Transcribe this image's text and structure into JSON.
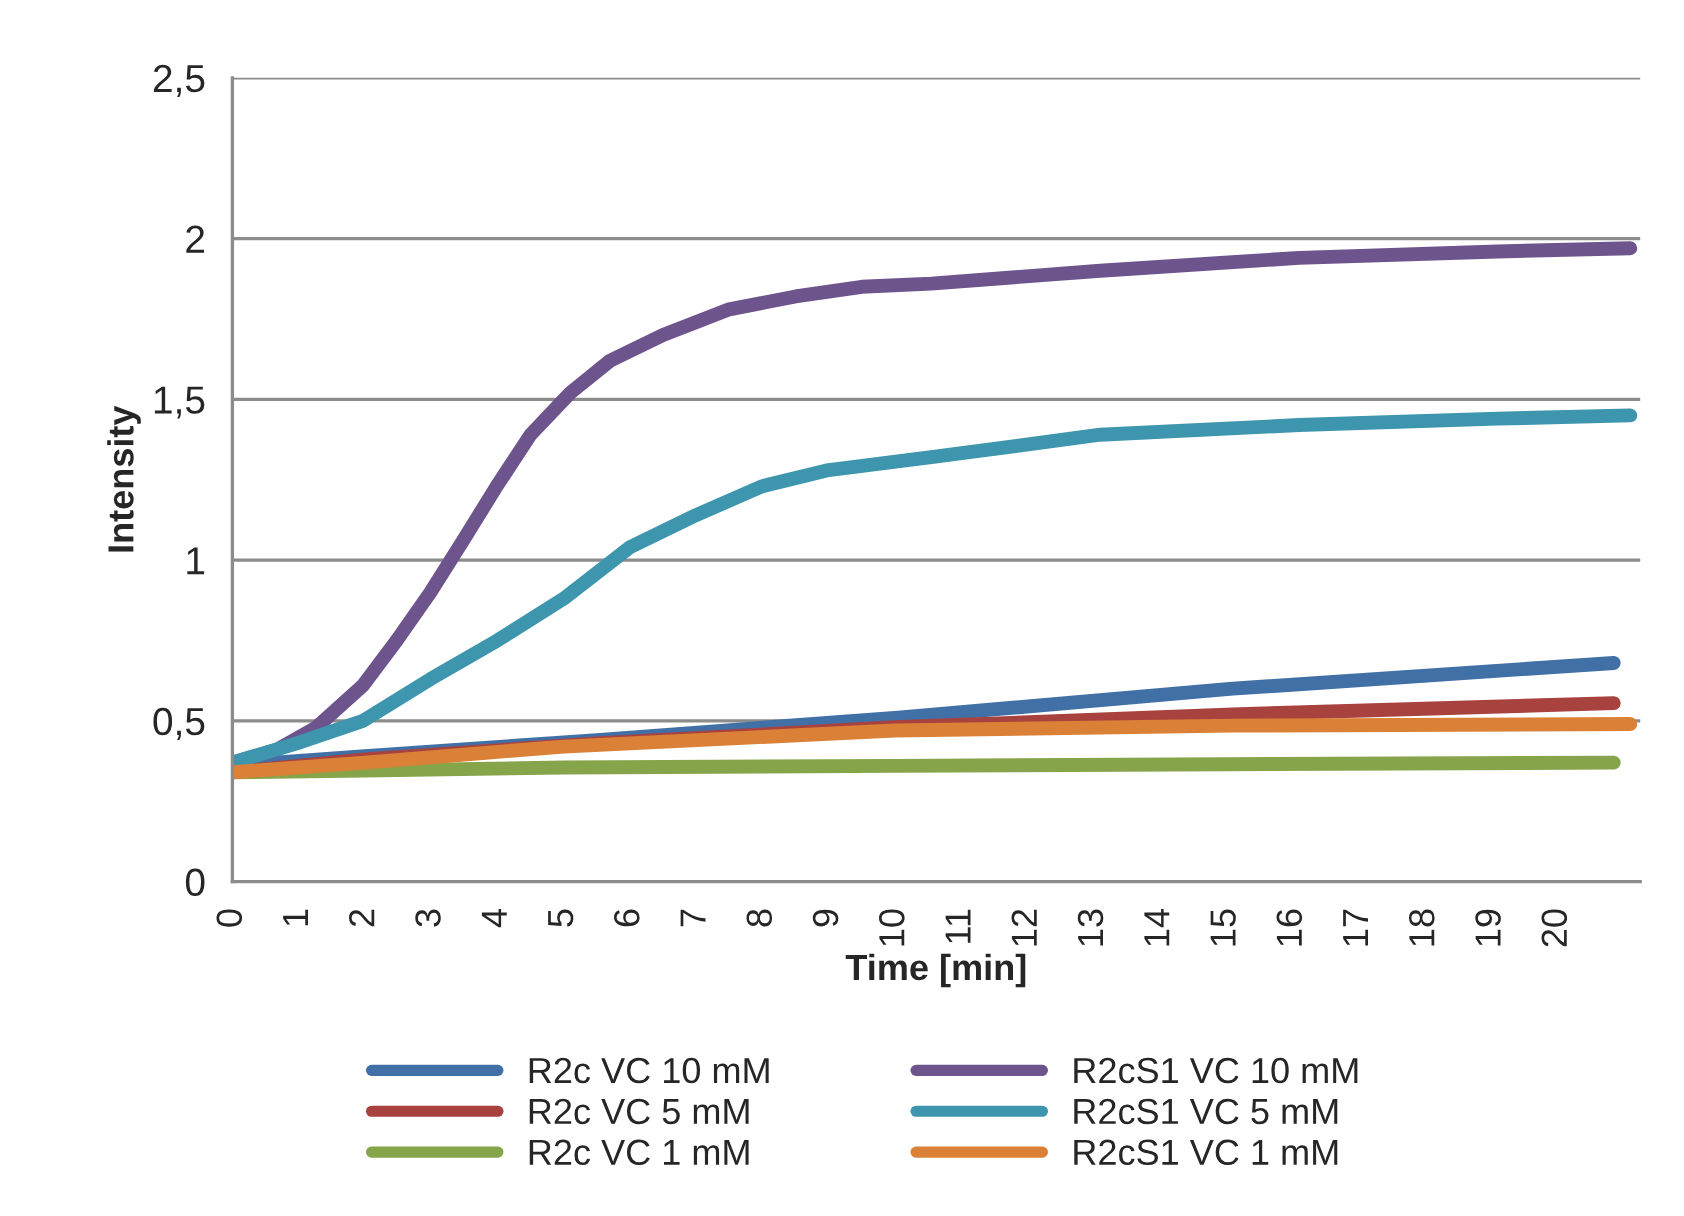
{
  "chart_data": {
    "type": "line",
    "xlabel": "Time [min]",
    "ylabel": "Intensity",
    "xlim": [
      0,
      21.25
    ],
    "xticks": [
      0,
      1,
      2,
      3,
      4,
      5,
      6,
      7,
      8,
      9,
      10,
      11,
      12,
      13,
      14,
      15,
      16,
      17,
      18,
      19,
      20
    ],
    "ylim": [
      0,
      2.5
    ],
    "yticks": [
      0,
      {
        "value": 0.5,
        "label": "0,5"
      },
      1,
      {
        "value": 1.5,
        "label": "1,5"
      },
      2,
      {
        "value": 2.5,
        "label": "2,5"
      }
    ],
    "grid": "y",
    "legend": "bottom",
    "marker": "none",
    "line_style": "solid",
    "series": [
      {
        "name": "R2c VC 10 mM",
        "color": "#4170a6",
        "x": [
          0,
          2,
          5.5,
          10.05,
          15.1,
          20.85
        ],
        "values": [
          0.36,
          0.39,
          0.44,
          0.51,
          0.6,
          0.68
        ]
      },
      {
        "name": "R2c VC 5 mM",
        "color": "#a8423f",
        "x": [
          0,
          2,
          5.5,
          10,
          15.1,
          20.85
        ],
        "values": [
          0.34,
          0.38,
          0.43,
          0.48,
          0.52,
          0.555
        ]
      },
      {
        "name": "R2c VC 1 mM",
        "color": "#86a44a",
        "x": [
          0,
          2,
          5,
          10,
          15,
          20.85
        ],
        "values": [
          0.34,
          0.345,
          0.355,
          0.36,
          0.365,
          0.37
        ]
      },
      {
        "name": "R2cS1 VC 10 mM",
        "color": "#6e548d",
        "x": [
          0,
          0.67,
          1.27,
          1.97,
          2.48,
          2.99,
          3.48,
          3.99,
          4.5,
          5.1,
          5.7,
          6.5,
          7.5,
          8.5,
          9.5,
          10.55,
          13.1,
          16.1,
          19.1,
          21.1
        ],
        "values": [
          0.37,
          0.41,
          0.48,
          0.61,
          0.75,
          0.9,
          1.06,
          1.23,
          1.39,
          1.52,
          1.62,
          1.7,
          1.78,
          1.82,
          1.85,
          1.86,
          1.9,
          1.94,
          1.96,
          1.97
        ]
      },
      {
        "name": "R2cS1 VC 5 mM",
        "color": "#3d96ae",
        "x": [
          0,
          0.97,
          1.97,
          2.99,
          4.0,
          5.0,
          6.0,
          7.0,
          8.0,
          9.0,
          10.55,
          13.1,
          16.1,
          19.1,
          21.1
        ],
        "values": [
          0.37,
          0.43,
          0.5,
          0.63,
          0.75,
          0.88,
          1.04,
          1.14,
          1.23,
          1.28,
          1.32,
          1.39,
          1.42,
          1.44,
          1.45
        ]
      },
      {
        "name": "R2cS1 VC 1 mM",
        "color": "#da8137",
        "x": [
          0,
          2,
          5,
          10,
          15.1,
          21.1
        ],
        "values": [
          0.34,
          0.37,
          0.42,
          0.47,
          0.485,
          0.49
        ]
      }
    ]
  }
}
